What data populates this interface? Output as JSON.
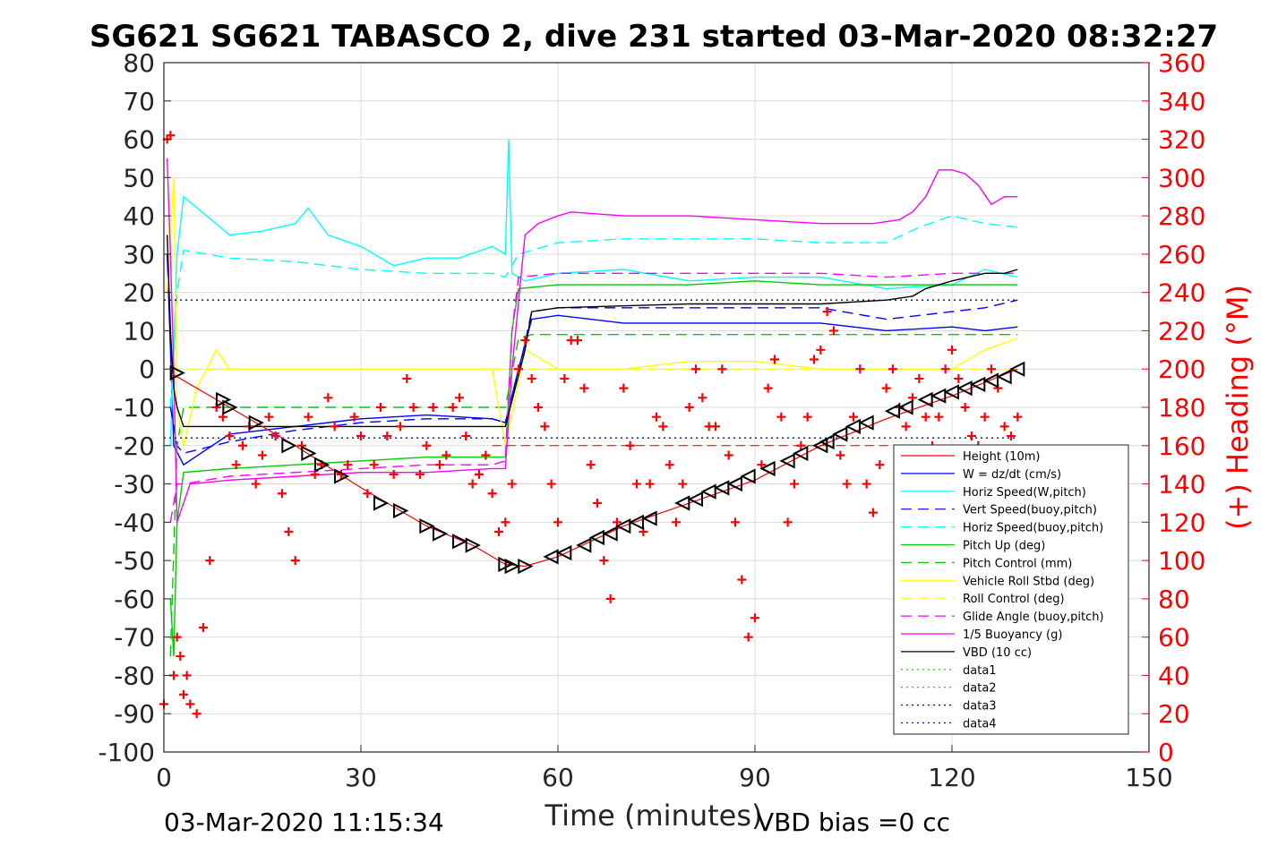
{
  "chart_data": {
    "type": "line",
    "title": "SG621 SG621 TABASCO 2, dive 231 started 03-Mar-2020 08:32:27",
    "xlabel": "Time (minutes)",
    "ylabel_right": "(+) Heading (°M)",
    "footer_left": "03-Mar-2020 11:15:34",
    "footer_right": "VBD bias =0 cc",
    "xlim": [
      0,
      150
    ],
    "ylim": [
      -100,
      80
    ],
    "ylim_right": [
      0,
      360
    ],
    "x_ticks": [
      0,
      30,
      60,
      90,
      120,
      150
    ],
    "y_ticks": [
      80,
      70,
      60,
      50,
      40,
      30,
      20,
      10,
      0,
      -10,
      -20,
      -30,
      -40,
      -50,
      -60,
      -70,
      -80,
      -90,
      -100
    ],
    "y_right_ticks": [
      360,
      340,
      320,
      300,
      280,
      260,
      240,
      220,
      200,
      180,
      160,
      140,
      120,
      100,
      80,
      60,
      40,
      20,
      0
    ],
    "grid": true,
    "legend_position": "bottom-right",
    "colors": {
      "red": "#ff0000",
      "blue": "#0000ff",
      "cyan": "#00ffff",
      "green": "#00cc00",
      "yellow": "#ffff00",
      "magenta": "#ff00ff",
      "black": "#000000"
    },
    "series": [
      {
        "name": "Height (10m)",
        "color": "#ff0000",
        "style": "solid",
        "x": [
          1,
          2,
          10,
          20,
          30,
          40,
          47,
          52,
          55,
          60,
          70,
          80,
          90,
          100,
          110,
          120,
          130
        ],
        "y": [
          -1,
          -2,
          -10,
          -20,
          -31,
          -41,
          -46,
          -51,
          -51.5,
          -49,
          -41,
          -35,
          -29,
          -20,
          -13,
          -7,
          0
        ]
      },
      {
        "name": "W = dz/dt (cm/s)",
        "color": "#0000ff",
        "style": "solid",
        "x": [
          0.5,
          1.5,
          3,
          10,
          20,
          30,
          40,
          50,
          52,
          54,
          56,
          60,
          70,
          80,
          90,
          100,
          110,
          120,
          125,
          130
        ],
        "y": [
          30,
          -20,
          -25,
          -17,
          -15,
          -13,
          -12,
          -13,
          -14,
          0,
          13,
          14,
          12,
          12,
          12,
          12,
          10,
          11,
          10,
          11
        ]
      },
      {
        "name": "Horiz Speed(W,pitch)",
        "color": "#00ffff",
        "style": "solid",
        "x": [
          1,
          2,
          3,
          10,
          15,
          20,
          22,
          25,
          30,
          35,
          40,
          45,
          50,
          52,
          52.5,
          53,
          55,
          60,
          70,
          80,
          90,
          100,
          110,
          120,
          125,
          130
        ],
        "y": [
          -20,
          30,
          45,
          35,
          36,
          38,
          42,
          35,
          32,
          27,
          29,
          29,
          32,
          30,
          60,
          25,
          23,
          25,
          26,
          23,
          24,
          24,
          21,
          22,
          26,
          24
        ]
      },
      {
        "name": "Vert Speed(buoy,pitch)",
        "color": "#0000ff",
        "style": "dashed",
        "x": [
          1,
          2,
          3,
          10,
          20,
          30,
          40,
          50,
          52,
          54,
          56,
          60,
          70,
          80,
          90,
          100,
          110,
          120,
          125,
          130
        ],
        "y": [
          -10,
          -20,
          -22,
          -19,
          -16,
          -14,
          -13,
          -13,
          -14,
          -1,
          15,
          16,
          16,
          16,
          16,
          16,
          13,
          15,
          16,
          18
        ]
      },
      {
        "name": "Horiz Speed(buoy,pitch)",
        "color": "#00ffff",
        "style": "dashed",
        "x": [
          1,
          2,
          3,
          10,
          20,
          30,
          40,
          50,
          52,
          54,
          60,
          70,
          80,
          90,
          100,
          110,
          115,
          120,
          125,
          130
        ],
        "y": [
          -10,
          20,
          31,
          29,
          28,
          26,
          25,
          25,
          24,
          30,
          33,
          34,
          34,
          34,
          33,
          33,
          37,
          40,
          38,
          37
        ]
      },
      {
        "name": "Pitch Up (deg)",
        "color": "#00cc00",
        "style": "solid",
        "x": [
          1,
          1.5,
          2,
          3,
          10,
          20,
          30,
          40,
          50,
          52,
          53,
          54,
          60,
          70,
          80,
          90,
          100,
          110,
          120,
          130
        ],
        "y": [
          -60,
          -75,
          -40,
          -27,
          -26,
          -25,
          -24,
          -23,
          -23,
          -23,
          10,
          21,
          22,
          22,
          22,
          23,
          22,
          22,
          22,
          22
        ]
      },
      {
        "name": "Pitch Control (mm)",
        "color": "#00cc00",
        "style": "dashed",
        "x": [
          1,
          2,
          3,
          10,
          20,
          30,
          40,
          50,
          52,
          54,
          56,
          60,
          70,
          80,
          90,
          100,
          110,
          120,
          130
        ],
        "y": [
          -75,
          -20,
          -10,
          -10,
          -10,
          -10,
          -10,
          -10,
          -10,
          8,
          9,
          9,
          9,
          9,
          9,
          9,
          9,
          9,
          9
        ]
      },
      {
        "name": "Vehicle Roll Stbd (deg)",
        "color": "#ffff00",
        "style": "solid",
        "x": [
          0.5,
          1.5,
          2,
          3,
          5,
          8,
          10,
          20,
          30,
          40,
          50,
          52,
          55,
          60,
          70,
          80,
          90,
          100,
          110,
          120,
          125,
          130
        ],
        "y": [
          20,
          50,
          -10,
          -20,
          -5,
          5,
          0,
          0,
          0,
          0,
          0,
          -20,
          5,
          0,
          0,
          2,
          2,
          0,
          0,
          0,
          5,
          8
        ]
      },
      {
        "name": "Roll Control (deg)",
        "color": "#ffff00",
        "style": "dashed",
        "x": [
          1,
          10,
          50,
          55,
          130
        ],
        "y": [
          0,
          0,
          0,
          0,
          0
        ]
      },
      {
        "name": "Glide Angle (buoy,pitch)",
        "color": "#ff00ff",
        "style": "dashed",
        "x": [
          1,
          2,
          3,
          10,
          20,
          30,
          40,
          50,
          52,
          53,
          54,
          60,
          70,
          80,
          90,
          100,
          110,
          120,
          130
        ],
        "y": [
          -40,
          -30,
          -30,
          -28,
          -27,
          -26,
          -25,
          -25,
          -24,
          10,
          24,
          25,
          25,
          25,
          25,
          25,
          24,
          25,
          25
        ]
      },
      {
        "name": "1/5 Buoyancy (g)",
        "color": "#ff00ff",
        "style": "solid",
        "x": [
          0.5,
          1,
          1.5,
          2,
          3,
          4,
          10,
          20,
          30,
          40,
          50,
          52,
          53,
          55,
          57,
          60,
          62,
          70,
          80,
          90,
          100,
          104,
          108,
          112,
          114,
          116,
          118,
          120,
          122,
          124,
          126,
          128,
          130
        ],
        "y": [
          55,
          30,
          0,
          -40,
          -35,
          -30,
          -29,
          -28,
          -27,
          -27,
          -26,
          -26,
          0,
          35,
          38,
          40,
          41,
          40,
          40,
          39,
          38,
          38,
          38,
          39,
          41,
          45,
          52,
          52,
          51,
          48,
          43,
          45,
          45
        ]
      },
      {
        "name": "VBD (10 cc)",
        "color": "#000000",
        "style": "solid",
        "x": [
          0.5,
          1,
          1.5,
          2,
          3,
          10,
          20,
          30,
          40,
          50,
          52,
          55,
          56,
          60,
          80,
          100,
          110,
          114,
          116,
          120,
          125,
          128,
          130
        ],
        "y": [
          35,
          10,
          -5,
          -10,
          -15,
          -15,
          -15,
          -15,
          -15,
          -15,
          -15,
          5,
          15,
          16,
          17,
          17,
          18,
          19,
          21,
          23,
          25,
          25,
          26
        ]
      },
      {
        "name": "data1",
        "color": "#00cc00",
        "style": "dotted",
        "x": [],
        "y": []
      },
      {
        "name": "data2",
        "color": "#00cc00",
        "style": "dotted",
        "x": [],
        "y": []
      },
      {
        "name": "data3",
        "color": "#000080",
        "style": "dotted",
        "x": [
          0,
          130
        ],
        "y": [
          18,
          18
        ]
      },
      {
        "name": "data4",
        "color": "#0000ff",
        "style": "dotted",
        "x": [
          0,
          130
        ],
        "y": [
          -18,
          -18
        ]
      }
    ],
    "red_dashed_hline": -20,
    "heading_points": {
      "color": "#ff0000",
      "marker": "+",
      "axis": "right",
      "x": [
        0,
        0.5,
        1,
        1.5,
        2,
        2.5,
        3,
        3.5,
        4,
        5,
        6,
        7,
        8,
        9,
        10,
        11,
        12,
        13,
        14,
        15,
        16,
        17,
        18,
        19,
        20,
        21,
        22,
        23,
        24,
        25,
        26,
        27,
        28,
        29,
        30,
        31,
        32,
        33,
        34,
        35,
        36,
        37,
        38,
        39,
        40,
        41,
        42,
        43,
        44,
        45,
        46,
        47,
        48,
        49,
        50,
        51,
        52,
        53,
        54,
        55,
        56,
        57,
        58,
        59,
        60,
        61,
        62,
        63,
        64,
        65,
        66,
        67,
        68,
        69,
        70,
        71,
        72,
        73,
        74,
        75,
        76,
        77,
        78,
        79,
        80,
        81,
        82,
        83,
        84,
        85,
        86,
        87,
        88,
        89,
        90,
        91,
        92,
        93,
        94,
        95,
        96,
        97,
        98,
        99,
        100,
        101,
        102,
        103,
        104,
        105,
        106,
        107,
        108,
        109,
        110,
        111,
        112,
        113,
        114,
        115,
        116,
        117,
        118,
        119,
        120,
        121,
        122,
        123,
        124,
        125,
        126,
        127,
        128,
        129,
        130
      ],
      "y": [
        25,
        320,
        322,
        40,
        60,
        50,
        30,
        40,
        25,
        20,
        65,
        100,
        180,
        175,
        165,
        150,
        160,
        170,
        140,
        155,
        175,
        165,
        135,
        115,
        100,
        160,
        175,
        145,
        150,
        185,
        170,
        145,
        150,
        175,
        165,
        135,
        150,
        180,
        165,
        145,
        170,
        195,
        180,
        145,
        160,
        180,
        150,
        155,
        180,
        185,
        165,
        140,
        145,
        155,
        135,
        115,
        120,
        140,
        200,
        215,
        195,
        180,
        170,
        140,
        120,
        195,
        215,
        215,
        190,
        150,
        130,
        100,
        80,
        120,
        190,
        160,
        140,
        115,
        140,
        175,
        170,
        150,
        120,
        140,
        180,
        200,
        185,
        170,
        170,
        200,
        155,
        120,
        90,
        60,
        70,
        150,
        190,
        205,
        175,
        120,
        140,
        160,
        175,
        205,
        210,
        230,
        220,
        155,
        140,
        175,
        200,
        140,
        125,
        150,
        190,
        200,
        180,
        170,
        185,
        195,
        175,
        160,
        175,
        200,
        210,
        195,
        180,
        165,
        160,
        175,
        200,
        190,
        170,
        165,
        175
      ]
    },
    "triangles": {
      "color": "#000000",
      "x": [
        2,
        9,
        10,
        14,
        19,
        22,
        24,
        27,
        33,
        36,
        40,
        42,
        45,
        47,
        52,
        53,
        55,
        59,
        61,
        64,
        66,
        68,
        70,
        72,
        74,
        79,
        81,
        83,
        85,
        87,
        89,
        92,
        95,
        97,
        100,
        101,
        103,
        105,
        107,
        111,
        113,
        116,
        118,
        120,
        122,
        124,
        126,
        128,
        130
      ],
      "y": [
        -1,
        -8,
        -10,
        -14,
        -20,
        -22,
        -25,
        -28,
        -35,
        -37,
        -41,
        -43,
        -45,
        -46,
        -51,
        -51.5,
        -51.5,
        -49,
        -48,
        -46,
        -44,
        -43,
        -41,
        -40,
        -39,
        -35,
        -34,
        -32,
        -31,
        -30,
        -28,
        -26,
        -24,
        -22,
        -20,
        -19,
        -17,
        -15,
        -14,
        -11,
        -10,
        -8,
        -7,
        -6,
        -5,
        -4,
        -3,
        -2,
        0
      ],
      "orientation": [
        "down",
        "down",
        "down",
        "down",
        "down",
        "down",
        "down",
        "down",
        "down",
        "down",
        "down",
        "down",
        "down",
        "down",
        "down",
        "down",
        "down",
        "up",
        "up",
        "up",
        "up",
        "up",
        "up",
        "up",
        "up",
        "up",
        "up",
        "up",
        "up",
        "up",
        "up",
        "up",
        "up",
        "up",
        "up",
        "up",
        "up",
        "up",
        "up",
        "up",
        "up",
        "up",
        "up",
        "up",
        "up",
        "up",
        "up",
        "up",
        "up"
      ]
    }
  }
}
